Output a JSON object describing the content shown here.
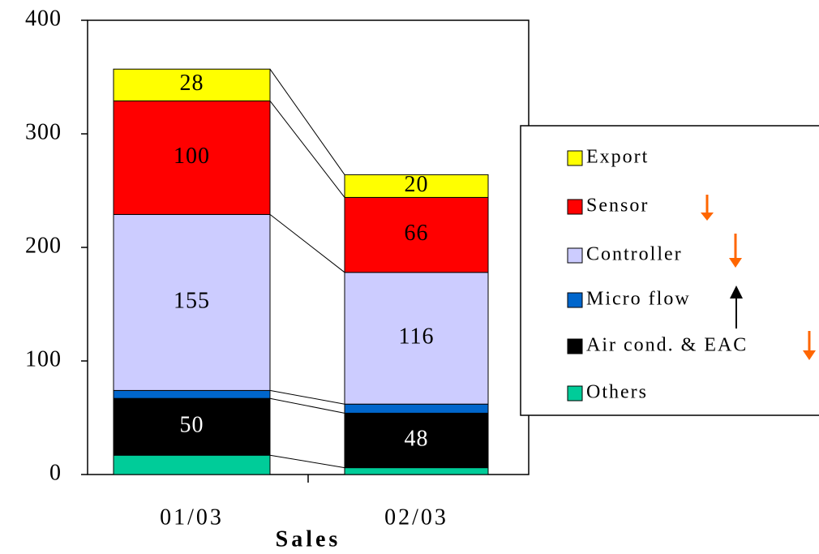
{
  "chart_data": {
    "type": "stacked_bar",
    "x_label": "Sales",
    "categories": [
      "01/03",
      "02/03"
    ],
    "series": [
      {
        "name": "Export",
        "color": "#ffff00",
        "values": [
          28,
          20
        ],
        "show_labels": true
      },
      {
        "name": "Sensor",
        "color": "#ff0000",
        "values": [
          100,
          66
        ],
        "show_labels": true
      },
      {
        "name": "Controller",
        "color": "#ccccff",
        "values": [
          155,
          116
        ],
        "show_labels": true
      },
      {
        "name": "Micro flow",
        "color": "#0066cc",
        "values": [
          7,
          8
        ],
        "show_labels": false
      },
      {
        "name": "Air cond. & EAC",
        "color": "#000000",
        "values": [
          50,
          48
        ],
        "show_labels": true
      },
      {
        "name": "Others",
        "color": "#00cc99",
        "values": [
          17,
          6
        ],
        "show_labels": false
      }
    ],
    "ylim": [
      0,
      400
    ],
    "yticks": [
      0,
      100,
      200,
      300,
      400
    ]
  }
}
